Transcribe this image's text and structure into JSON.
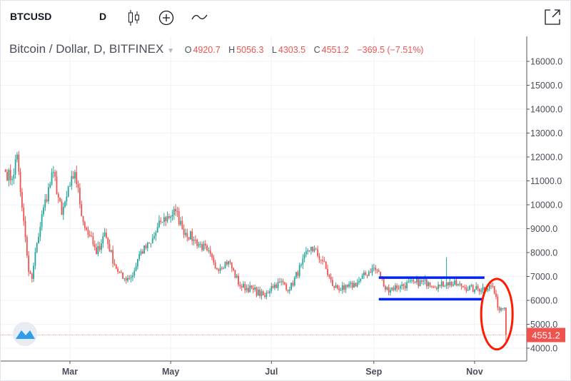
{
  "toolbar": {
    "symbol": "BTCUSD",
    "interval": "D",
    "icons": [
      "candlestick-icon",
      "add-indicator-icon",
      "compare-line-icon",
      "popout-icon"
    ]
  },
  "legend": {
    "title": "Bitcoin / Dollar, D, BITFINEX",
    "o_label": "O",
    "o": "4920.7",
    "h_label": "H",
    "h": "5056.3",
    "l_label": "L",
    "l": "4303.5",
    "c_label": "C",
    "c": "4551.2",
    "change": "−369.5 (−7.51%)"
  },
  "colors": {
    "up": "#26a69a",
    "down": "#ef5350",
    "annotation_lines": "#0022ff",
    "annotation_ellipse": "#ff1a00",
    "last_price": "#ef5350"
  },
  "chart_data": {
    "type": "candlestick",
    "year": 2018,
    "ylim": [
      3500,
      16800
    ],
    "grid": true,
    "y_ticks": [
      "16000.0",
      "15000.0",
      "14000.0",
      "13000.0",
      "12000.0",
      "11000.0",
      "10000.0",
      "9000.0",
      "8000.0",
      "7000.0",
      "6000.0",
      "5000.0",
      "4000.0"
    ],
    "x_ticks": [
      {
        "label": "Mar",
        "date": "2018-03-01"
      },
      {
        "label": "May",
        "date": "2018-05-01"
      },
      {
        "label": "Jul",
        "date": "2018-07-01"
      },
      {
        "label": "Sep",
        "date": "2018-09-01"
      },
      {
        "label": "Nov",
        "date": "2018-11-01"
      }
    ],
    "last_price": "4551.2",
    "close_anchors": [
      [
        "2018-01-21",
        11370
      ],
      [
        "2018-01-25",
        11080
      ],
      [
        "2018-01-28",
        12100
      ],
      [
        "2018-01-31",
        9880
      ],
      [
        "2018-02-04",
        7190
      ],
      [
        "2018-02-06",
        6900
      ],
      [
        "2018-02-09",
        8390
      ],
      [
        "2018-02-13",
        9880
      ],
      [
        "2018-02-19",
        11370
      ],
      [
        "2018-02-24",
        9580
      ],
      [
        "2018-03-01",
        10780
      ],
      [
        "2018-03-04",
        11370
      ],
      [
        "2018-03-09",
        9280
      ],
      [
        "2018-03-13",
        8690
      ],
      [
        "2018-03-17",
        7940
      ],
      [
        "2018-03-22",
        8840
      ],
      [
        "2018-03-28",
        7490
      ],
      [
        "2018-04-02",
        6900
      ],
      [
        "2018-04-08",
        7040
      ],
      [
        "2018-04-12",
        7940
      ],
      [
        "2018-04-19",
        8390
      ],
      [
        "2018-04-25",
        9280
      ],
      [
        "2018-05-04",
        9730
      ],
      [
        "2018-05-08",
        8990
      ],
      [
        "2018-05-15",
        8540
      ],
      [
        "2018-05-23",
        8090
      ],
      [
        "2018-05-28",
        7340
      ],
      [
        "2018-06-05",
        7640
      ],
      [
        "2018-06-12",
        6600
      ],
      [
        "2018-06-20",
        6450
      ],
      [
        "2018-06-27",
        6150
      ],
      [
        "2018-07-01",
        6600
      ],
      [
        "2018-07-08",
        6750
      ],
      [
        "2018-07-12",
        6450
      ],
      [
        "2018-07-19",
        7490
      ],
      [
        "2018-07-25",
        8240
      ],
      [
        "2018-08-01",
        7640
      ],
      [
        "2018-08-07",
        6600
      ],
      [
        "2018-08-14",
        6450
      ],
      [
        "2018-08-22",
        6750
      ],
      [
        "2018-08-31",
        7340
      ],
      [
        "2018-09-04",
        7190
      ],
      [
        "2018-09-08",
        6450
      ],
      [
        "2018-09-17",
        6600
      ],
      [
        "2018-09-26",
        6750
      ],
      [
        "2018-10-04",
        6750
      ],
      [
        "2018-10-11",
        6600
      ],
      [
        "2018-10-15",
        6750
      ],
      [
        "2018-10-24",
        6600
      ],
      [
        "2018-11-01",
        6450
      ],
      [
        "2018-11-12",
        6600
      ],
      [
        "2018-11-15",
        5700
      ],
      [
        "2018-11-19",
        5700
      ],
      [
        "2018-11-20",
        4551.2
      ]
    ],
    "notable_high": {
      "date": "2018-10-15",
      "value": 7800
    },
    "annotations": {
      "range_lines": [
        {
          "value": 6950,
          "from": "2018-09-04",
          "to": "2018-11-07"
        },
        {
          "value": 6050,
          "from": "2018-09-04",
          "to": "2018-11-06"
        }
      ],
      "ellipse": {
        "from": "2018-11-05",
        "to": "2018-11-24",
        "low": 3950,
        "high": 6900
      }
    }
  }
}
